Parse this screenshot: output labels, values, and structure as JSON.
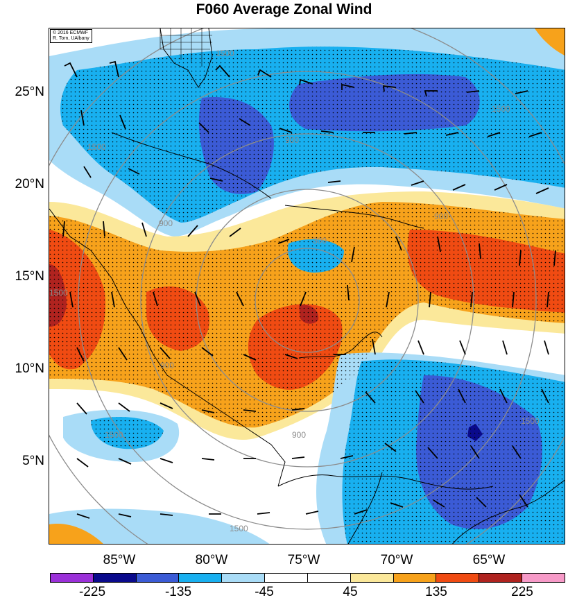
{
  "title": "F060 Average Zonal Wind",
  "credit": {
    "line1": "© 2016 ECMWF",
    "line2": "R. Torn, UAlbany"
  },
  "lat_labels": [
    "25°N",
    "20°N",
    "15°N",
    "10°N",
    "5°N"
  ],
  "lon_labels": [
    "85°W",
    "80°W",
    "75°W",
    "70°W",
    "65°W"
  ],
  "contour_labels": [
    "1500",
    "300",
    "900",
    "1500",
    "900",
    "900",
    "1500",
    "1500",
    "900",
    "1500",
    "1500",
    "900",
    "1500"
  ],
  "colorbar": {
    "labels": [
      "-225",
      "-135",
      "-45",
      "45",
      "135",
      "225"
    ],
    "colors": [
      "#9b30d9",
      "#0a0a8c",
      "#3b5bd6",
      "#18b0f0",
      "#a9dcf7",
      "#ffffff",
      "#ffffff",
      "#fbe89a",
      "#f7a21b",
      "#f04b12",
      "#b0231f",
      "#f79ac8"
    ]
  }
}
